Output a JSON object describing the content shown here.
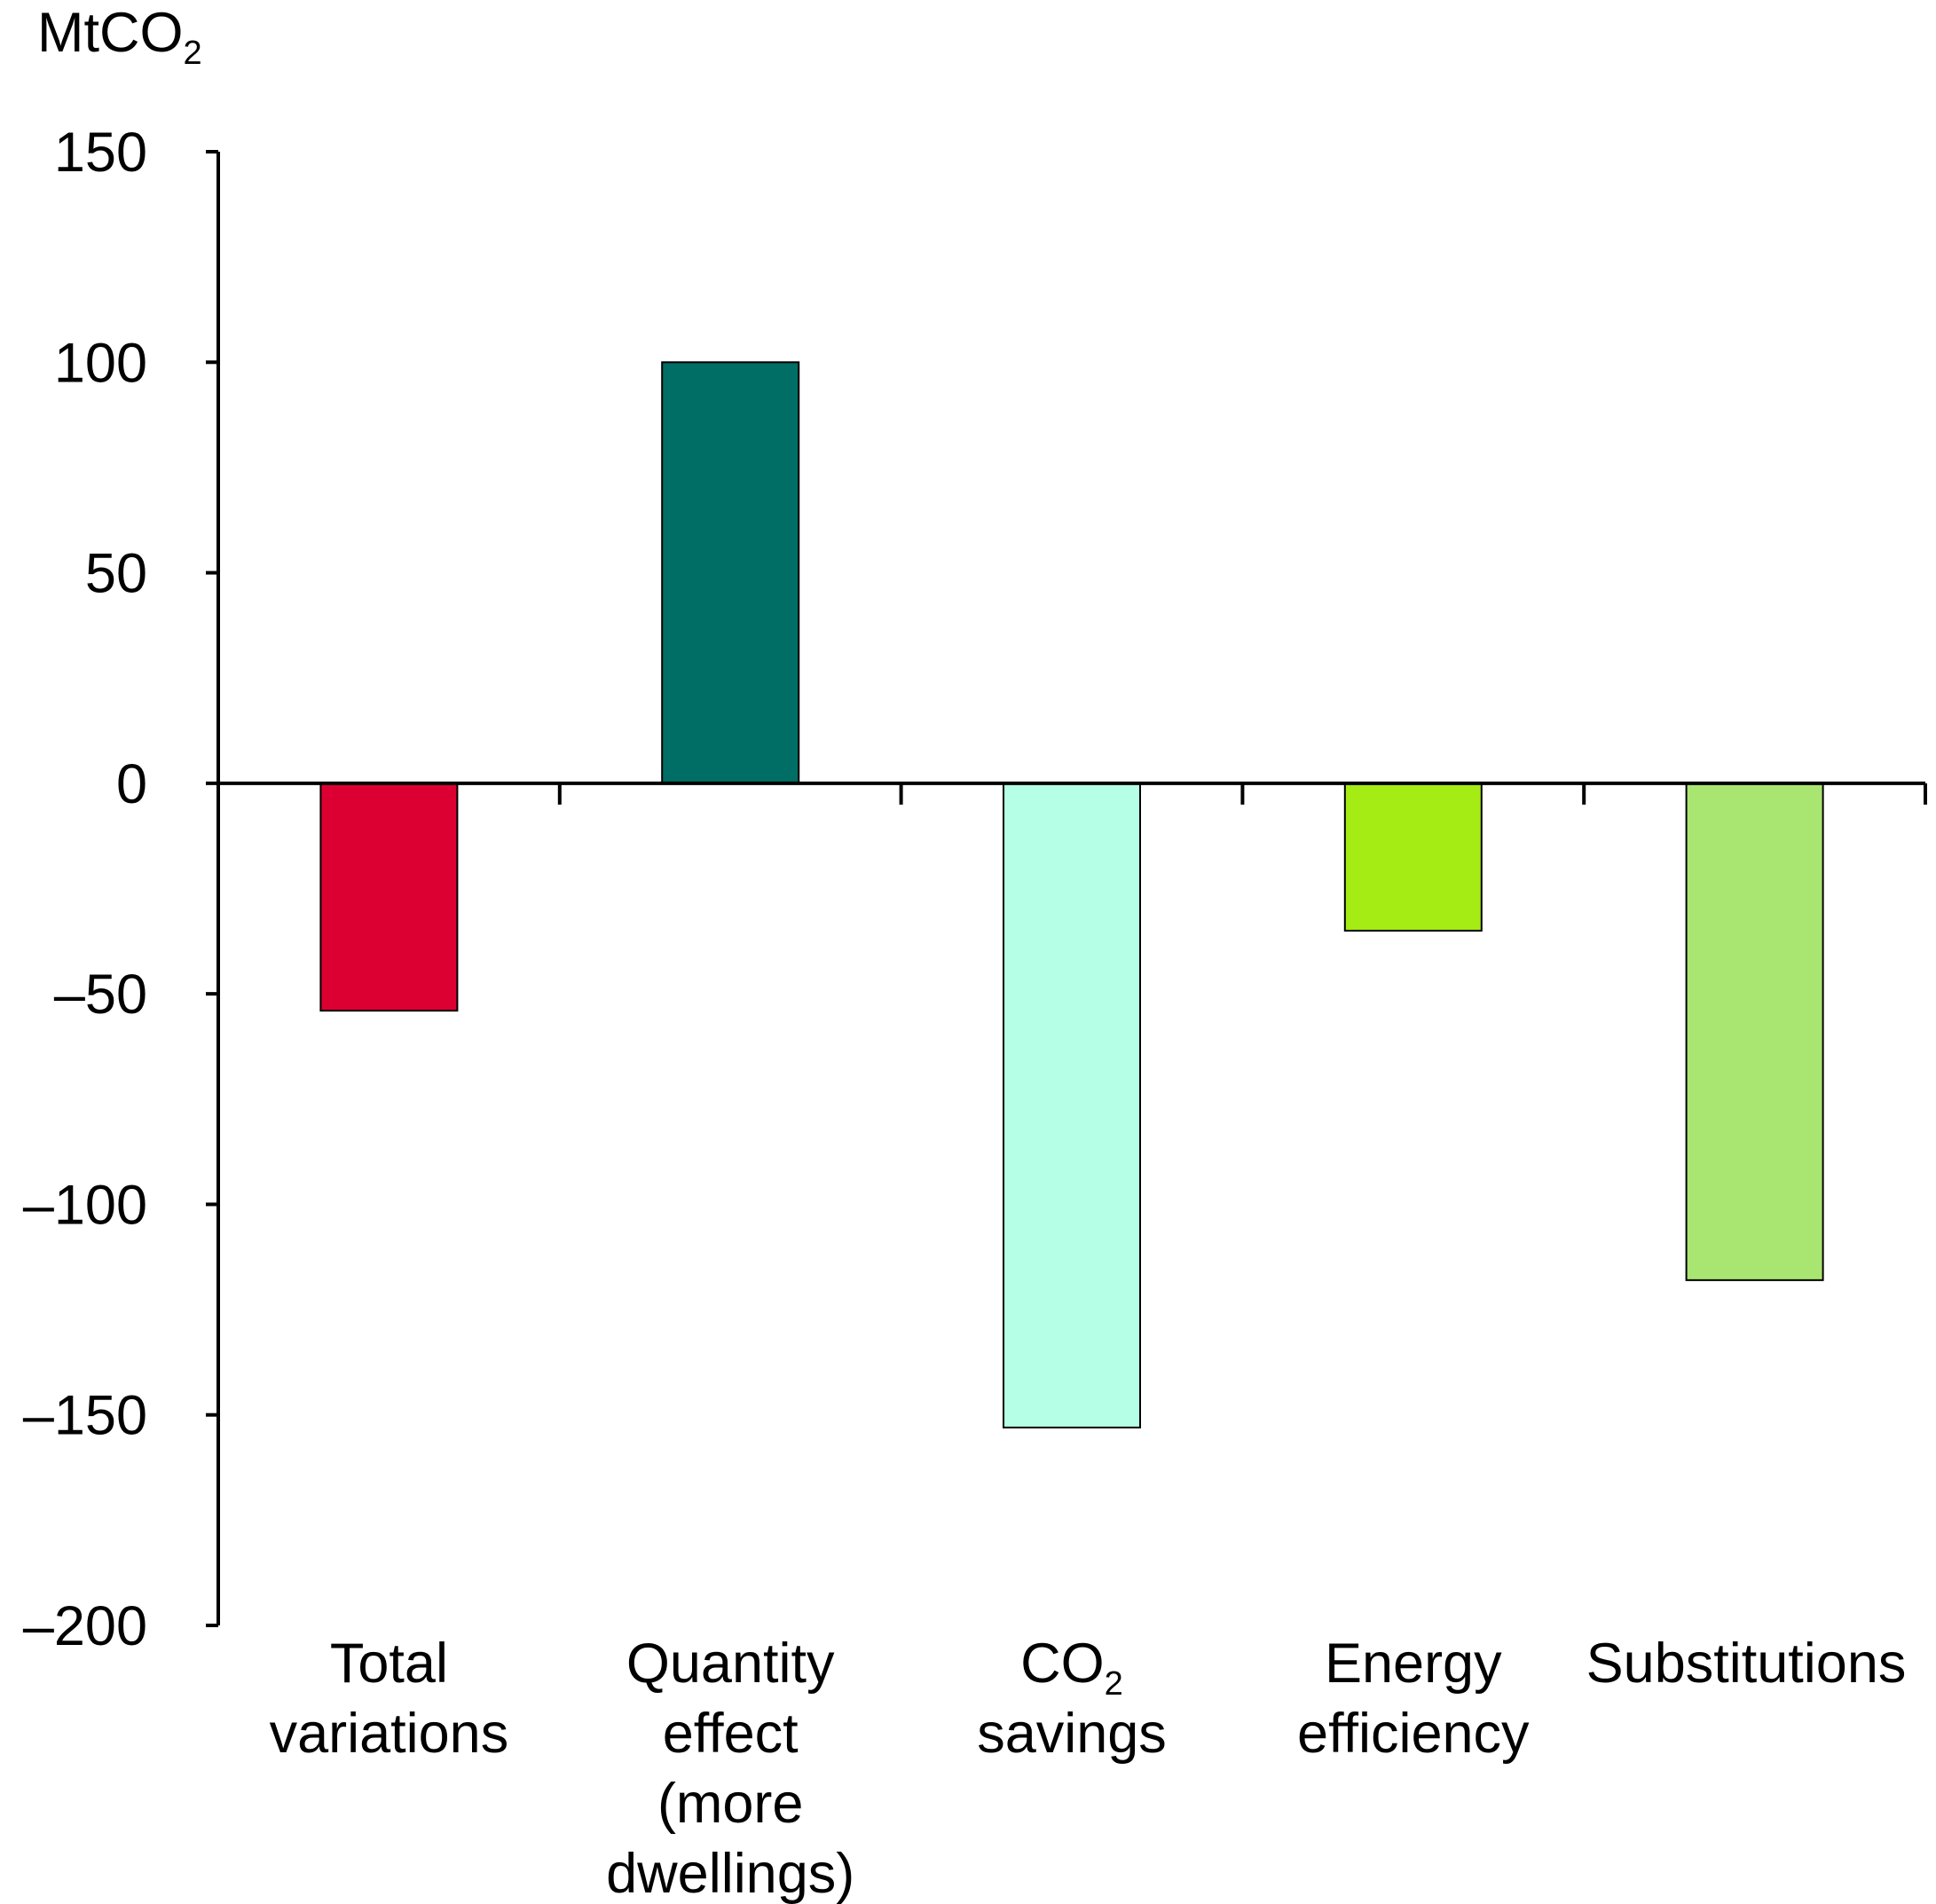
{
  "chart_data": {
    "type": "bar",
    "ylabel": "MtCO2",
    "ylabel_parts": {
      "main": "MtCO",
      "sub": "2"
    },
    "ylim": [
      -200,
      150
    ],
    "yticks": [
      150,
      100,
      50,
      0,
      -50,
      -100,
      -150,
      -200
    ],
    "ytick_labels": [
      "150",
      "100",
      "50",
      "0",
      "–50",
      "–100",
      "–150",
      "–200"
    ],
    "grid": false,
    "categories": [
      "Total variations",
      "Quantity effect (more dwellings)",
      "CO2 savings",
      "Energy efficiency",
      "Substitutions"
    ],
    "category_label_lines": [
      [
        {
          "text": "Total"
        },
        {
          "text": "variations"
        }
      ],
      [
        {
          "text": "Quantity"
        },
        {
          "text": "effect"
        },
        {
          "text": "(more"
        },
        {
          "text": "dwellings)"
        }
      ],
      [
        {
          "text": "CO",
          "sub": "2"
        },
        {
          "text": "savings"
        }
      ],
      [
        {
          "text": "Energy"
        },
        {
          "text": "efficiency"
        }
      ],
      [
        {
          "text": "Substitutions"
        }
      ]
    ],
    "values": [
      -54,
      100,
      -153,
      -35,
      -118
    ],
    "colors": [
      "#dc0032",
      "#006e64",
      "#b4ffe6",
      "#a5eb14",
      "#a9e571"
    ]
  }
}
